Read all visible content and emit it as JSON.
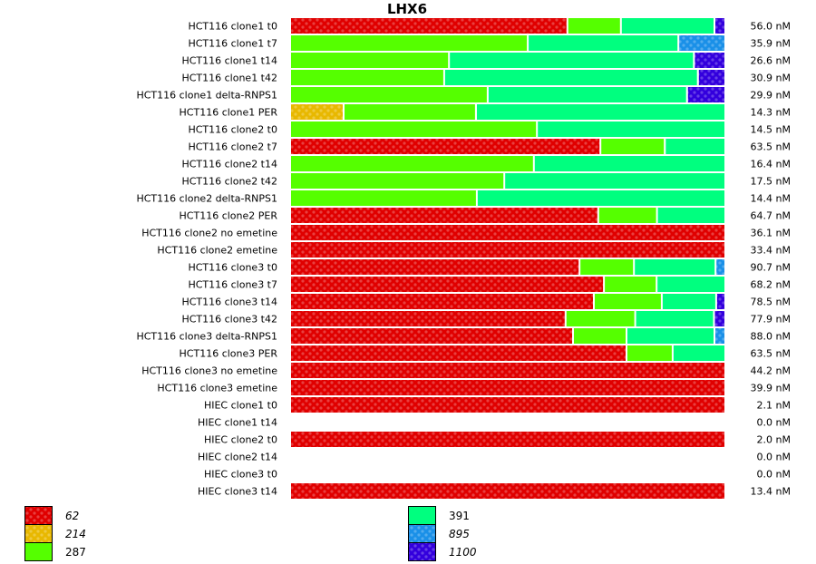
{
  "chart_data": {
    "type": "bar",
    "orientation": "horizontal",
    "stacked": "percent",
    "title": "LHX6",
    "xlabel": "",
    "ylabel": "",
    "grid": false,
    "legend_placement": "bottom",
    "legend": [
      {
        "name": "62",
        "color": "#e00000",
        "patterned": true
      },
      {
        "name": "214",
        "color": "#e8b800",
        "patterned": true
      },
      {
        "name": "287",
        "color": "#55ff00",
        "patterned": false
      },
      {
        "name": "391",
        "color": "#00ff7f",
        "patterned": false
      },
      {
        "name": "895",
        "color": "#1a90e8",
        "patterned": true
      },
      {
        "name": "1100",
        "color": "#3300dd",
        "patterned": true
      }
    ],
    "categories": [
      "HCT116 clone1 t0",
      "HCT116 clone1 t7",
      "HCT116 clone1 t14",
      "HCT116 clone1 t42",
      "HCT116 clone1 delta-RNPS1",
      "HCT116 clone1 PER",
      "HCT116 clone2 t0",
      "HCT116 clone2 t7",
      "HCT116 clone2 t14",
      "HCT116 clone2 t42",
      "HCT116 clone2 delta-RNPS1",
      "HCT116 clone2 PER",
      "HCT116 clone2 no emetine",
      "HCT116 clone2 emetine",
      "HCT116 clone3 t0",
      "HCT116 clone3 t7",
      "HCT116 clone3 t14",
      "HCT116 clone3 t42",
      "HCT116 clone3 delta-RNPS1",
      "HCT116 clone3 PER",
      "HCT116 clone3 no emetine",
      "HCT116 clone3 emetine",
      "HIEC clone1 t0",
      "HIEC clone1 t14",
      "HIEC clone2 t0",
      "HIEC clone2 t14",
      "HIEC clone3 t0",
      "HIEC clone3 t14"
    ],
    "totals": [
      "56.0 nM",
      "35.9 nM",
      "26.6 nM",
      "30.9 nM",
      "29.9 nM",
      "14.3 nM",
      "14.5 nM",
      "63.5 nM",
      "16.4 nM",
      "17.5 nM",
      "14.4 nM",
      "64.7 nM",
      "36.1 nM",
      "33.4 nM",
      "90.7 nM",
      "68.2 nM",
      "78.5 nM",
      "77.9 nM",
      "88.0 nM",
      "63.5 nM",
      "44.2 nM",
      "39.9 nM",
      "2.1 nM",
      "0.0 nM",
      "2.0 nM",
      "0.0 nM",
      "0.0 nM",
      "13.4 nM"
    ],
    "series": [
      {
        "name": "62",
        "values": [
          63.7,
          0,
          0,
          0,
          0,
          0,
          0,
          71.3,
          0,
          0,
          0,
          70.8,
          100,
          100,
          66.5,
          72.1,
          69.8,
          63.3,
          65.0,
          77.3,
          100,
          100,
          100,
          0,
          100,
          0,
          0,
          100
        ]
      },
      {
        "name": "214",
        "values": [
          0,
          0,
          0,
          0,
          0,
          12.3,
          0,
          0,
          0,
          0,
          0,
          0,
          0,
          0,
          0,
          0,
          0,
          0,
          0,
          0,
          0,
          0,
          0,
          0,
          0,
          0,
          0,
          0
        ]
      },
      {
        "name": "287",
        "values": [
          12.3,
          54.6,
          36.5,
          35.4,
          45.4,
          30.4,
          56.7,
          14.8,
          56.0,
          49.2,
          42.9,
          13.5,
          0,
          0,
          12.5,
          12.1,
          15.6,
          16.0,
          12.3,
          10.6,
          0,
          0,
          0,
          0,
          0,
          0,
          0,
          0
        ]
      },
      {
        "name": "391",
        "values": [
          21.5,
          34.6,
          56.3,
          58.3,
          45.8,
          57.3,
          43.3,
          13.9,
          44.0,
          50.8,
          57.1,
          15.7,
          0,
          0,
          18.75,
          15.8,
          12.5,
          18.1,
          20.2,
          12.1,
          0,
          0,
          0,
          0,
          0,
          0,
          0,
          0
        ]
      },
      {
        "name": "895",
        "values": [
          0,
          10.8,
          0,
          0,
          0,
          0,
          0,
          0,
          0,
          0,
          0,
          0,
          0,
          0,
          2.25,
          0,
          0,
          0,
          2.5,
          0,
          0,
          0,
          0,
          0,
          0,
          0,
          0,
          0
        ]
      },
      {
        "name": "1100",
        "values": [
          2.5,
          0,
          7.2,
          6.3,
          8.8,
          0,
          0,
          0,
          0,
          0,
          0,
          0,
          0,
          0,
          0,
          0,
          2.1,
          2.6,
          0,
          0,
          0,
          0,
          0,
          0,
          0,
          0,
          0,
          0
        ]
      }
    ],
    "xlim": [
      0,
      100
    ]
  }
}
